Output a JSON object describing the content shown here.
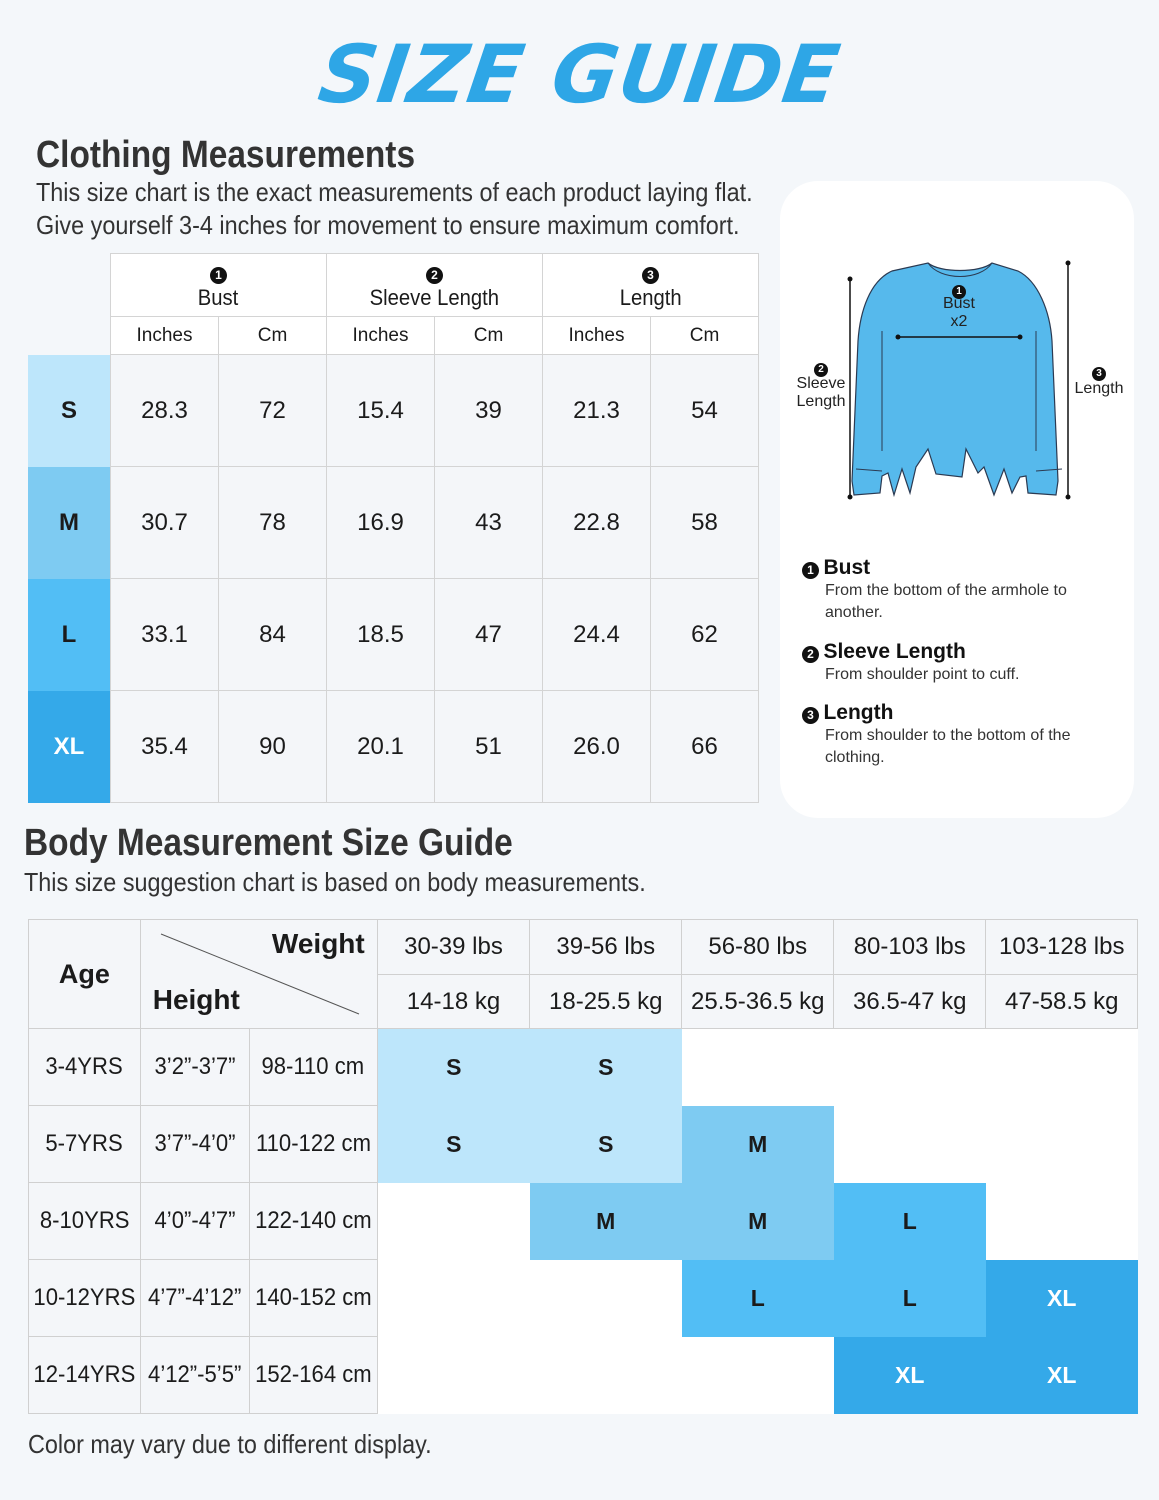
{
  "title": "SIZE GUIDE",
  "clothing": {
    "heading": "Clothing Measurements",
    "line1": "This size chart is the exact measurements of each product laying flat.",
    "line2": "Give yourself 3-4 inches for movement to ensure maximum comfort.",
    "groups": [
      {
        "num": "1",
        "label": "Bust"
      },
      {
        "num": "2",
        "label": "Sleeve Length"
      },
      {
        "num": "3",
        "label": "Length"
      }
    ],
    "units": [
      "Inches",
      "Cm",
      "Inches",
      "Cm",
      "Inches",
      "Cm"
    ],
    "rows": [
      {
        "size": "S",
        "vals": [
          "28.3",
          "72",
          "15.4",
          "39",
          "21.3",
          "54"
        ]
      },
      {
        "size": "M",
        "vals": [
          "30.7",
          "78",
          "16.9",
          "43",
          "22.8",
          "58"
        ]
      },
      {
        "size": "L",
        "vals": [
          "33.1",
          "84",
          "18.5",
          "47",
          "24.4",
          "62"
        ]
      },
      {
        "size": "XL",
        "vals": [
          "35.4",
          "90",
          "20.1",
          "51",
          "26.0",
          "66"
        ]
      }
    ],
    "size_colors": [
      "#bde6fb",
      "#7ecbf2",
      "#52bef5",
      "#34a9e9"
    ]
  },
  "diagram": {
    "bust_label": "Bust",
    "bust_mult": "x2",
    "sleeve_label_1": "Sleeve",
    "sleeve_label_2": "Length",
    "length_label": "Length",
    "shirt_color": "#56b9ec",
    "defs": [
      {
        "num": "1",
        "term": "Bust",
        "desc": "From the bottom of the armhole to another."
      },
      {
        "num": "2",
        "term": "Sleeve Length",
        "desc": "From shoulder point to cuff."
      },
      {
        "num": "3",
        "term": "Length",
        "desc": "From shoulder to the bottom of the clothing."
      }
    ]
  },
  "body": {
    "heading": "Body Measurement Size Guide",
    "subtitle": "This size suggestion chart is based on body measurements.",
    "age_label": "Age",
    "weight_label": "Weight",
    "height_label": "Height",
    "weights_lbs": [
      "30-39 lbs",
      "39-56 lbs",
      "56-80 lbs",
      "80-103 lbs",
      "103-128 lbs"
    ],
    "weights_kg": [
      "14-18 kg",
      "18-25.5 kg",
      "25.5-36.5 kg",
      "36.5-47 kg",
      "47-58.5 kg"
    ],
    "rows": [
      {
        "age": "3-4YRS",
        "ft": "3’2”-3’7”",
        "cm": "98-110 cm",
        "cells": [
          "S",
          "S",
          "",
          "",
          ""
        ]
      },
      {
        "age": "5-7YRS",
        "ft": "3’7”-4’0”",
        "cm": "110-122 cm",
        "cells": [
          "S",
          "S",
          "M",
          "",
          ""
        ]
      },
      {
        "age": "8-10YRS",
        "ft": "4’0”-4’7”",
        "cm": "122-140 cm",
        "cells": [
          "",
          "M",
          "M",
          "L",
          ""
        ]
      },
      {
        "age": "10-12YRS",
        "ft": "4’7”-4’12”",
        "cm": "140-152 cm",
        "cells": [
          "",
          "",
          "L",
          "L",
          "XL"
        ]
      },
      {
        "age": "12-14YRS",
        "ft": "4’12”-5’5”",
        "cm": "152-164 cm",
        "cells": [
          "",
          "",
          "",
          "XL",
          "XL"
        ]
      }
    ],
    "note": "Color may vary due to different display."
  }
}
